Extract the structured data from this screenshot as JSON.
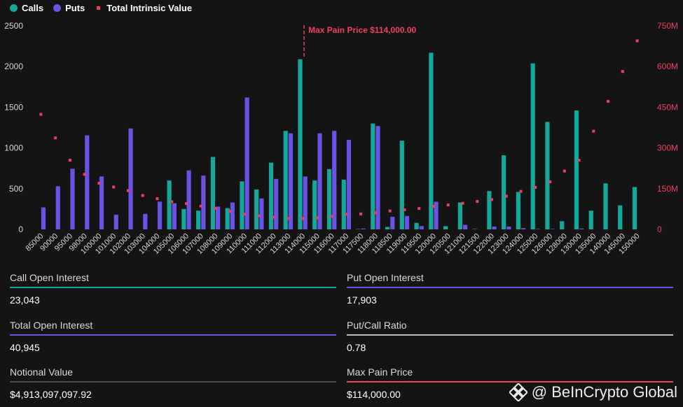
{
  "legend": {
    "calls": "Calls",
    "puts": "Puts",
    "intrinsic": "Total Intrinsic Value"
  },
  "colors": {
    "calls": "#14a79a",
    "puts": "#6b52e6",
    "intrinsic": "#f03e5e",
    "max_pain": "#f03e5e"
  },
  "chart_data": {
    "type": "bar",
    "categories": [
      "85000",
      "90000",
      "95000",
      "98000",
      "100000",
      "101000",
      "102000",
      "103000",
      "104000",
      "105000",
      "106000",
      "107000",
      "108000",
      "109000",
      "110000",
      "111000",
      "112000",
      "113000",
      "114000",
      "115000",
      "116000",
      "117000",
      "117500",
      "118000",
      "118500",
      "119000",
      "119500",
      "120000",
      "120500",
      "121000",
      "121500",
      "122000",
      "123000",
      "124000",
      "125000",
      "126000",
      "128000",
      "130000",
      "135000",
      "140000",
      "145000",
      "150000"
    ],
    "series": [
      {
        "name": "Calls",
        "axis": "left",
        "values": [
          0,
          0,
          0,
          0,
          0,
          0,
          0,
          0,
          0,
          600,
          250,
          230,
          890,
          260,
          590,
          490,
          820,
          1210,
          2090,
          600,
          740,
          610,
          5,
          1300,
          30,
          1090,
          80,
          2170,
          40,
          330,
          5,
          470,
          910,
          460,
          2040,
          1320,
          100,
          1460,
          230,
          565,
          295,
          520
        ]
      },
      {
        "name": "Puts",
        "axis": "left",
        "values": [
          270,
          530,
          745,
          1155,
          650,
          180,
          1240,
          190,
          340,
          320,
          725,
          660,
          280,
          330,
          1620,
          380,
          620,
          1180,
          650,
          1180,
          1210,
          1100,
          10,
          1270,
          155,
          165,
          40,
          340,
          0,
          55,
          0,
          35,
          35,
          15,
          5,
          5,
          0,
          10,
          0,
          0,
          0,
          0
        ]
      },
      {
        "name": "Total Intrinsic Value",
        "axis": "right",
        "type": "scatter",
        "values": [
          424,
          337,
          255,
          203,
          170,
          156,
          143,
          125,
          113,
          102,
          95,
          86,
          78,
          66,
          56,
          50,
          45,
          40,
          40,
          43,
          48,
          56,
          57,
          61,
          68,
          72,
          77,
          85,
          90,
          96,
          103,
          110,
          122,
          140,
          155,
          175,
          215,
          255,
          362,
          472,
          582,
          695
        ]
      }
    ],
    "title": "",
    "xlabel": "",
    "ylabel": "",
    "ylim": [
      0,
      2500
    ],
    "yticks": [
      "0",
      "500",
      "1000",
      "1500",
      "2000",
      "2500"
    ],
    "y2lim": [
      0,
      750
    ],
    "y2ticks": [
      "0",
      "150M",
      "300M",
      "450M",
      "600M",
      "750M"
    ],
    "max_pain": {
      "strike": "114000",
      "label": "Max Pain Price $114,000.00"
    },
    "grid": false
  },
  "stats": [
    {
      "label": "Call Open Interest",
      "value": "23,043",
      "color": "#14a79a"
    },
    {
      "label": "Put Open Interest",
      "value": "17,903",
      "color": "#6b52e6"
    },
    {
      "label": "Total Open Interest",
      "value": "40,945",
      "color": "#6b52e6"
    },
    {
      "label": "Put/Call Ratio",
      "value": "0.78",
      "color": "#bdbdbd"
    },
    {
      "label": "Notional Value",
      "value": "$4,913,097,097.92",
      "color": "#4a4a4a"
    },
    {
      "label": "Max Pain Price",
      "value": "$114,000.00",
      "color": "#f03e5e"
    }
  ],
  "watermark": {
    "text": "@ BeInCrypto Global"
  }
}
